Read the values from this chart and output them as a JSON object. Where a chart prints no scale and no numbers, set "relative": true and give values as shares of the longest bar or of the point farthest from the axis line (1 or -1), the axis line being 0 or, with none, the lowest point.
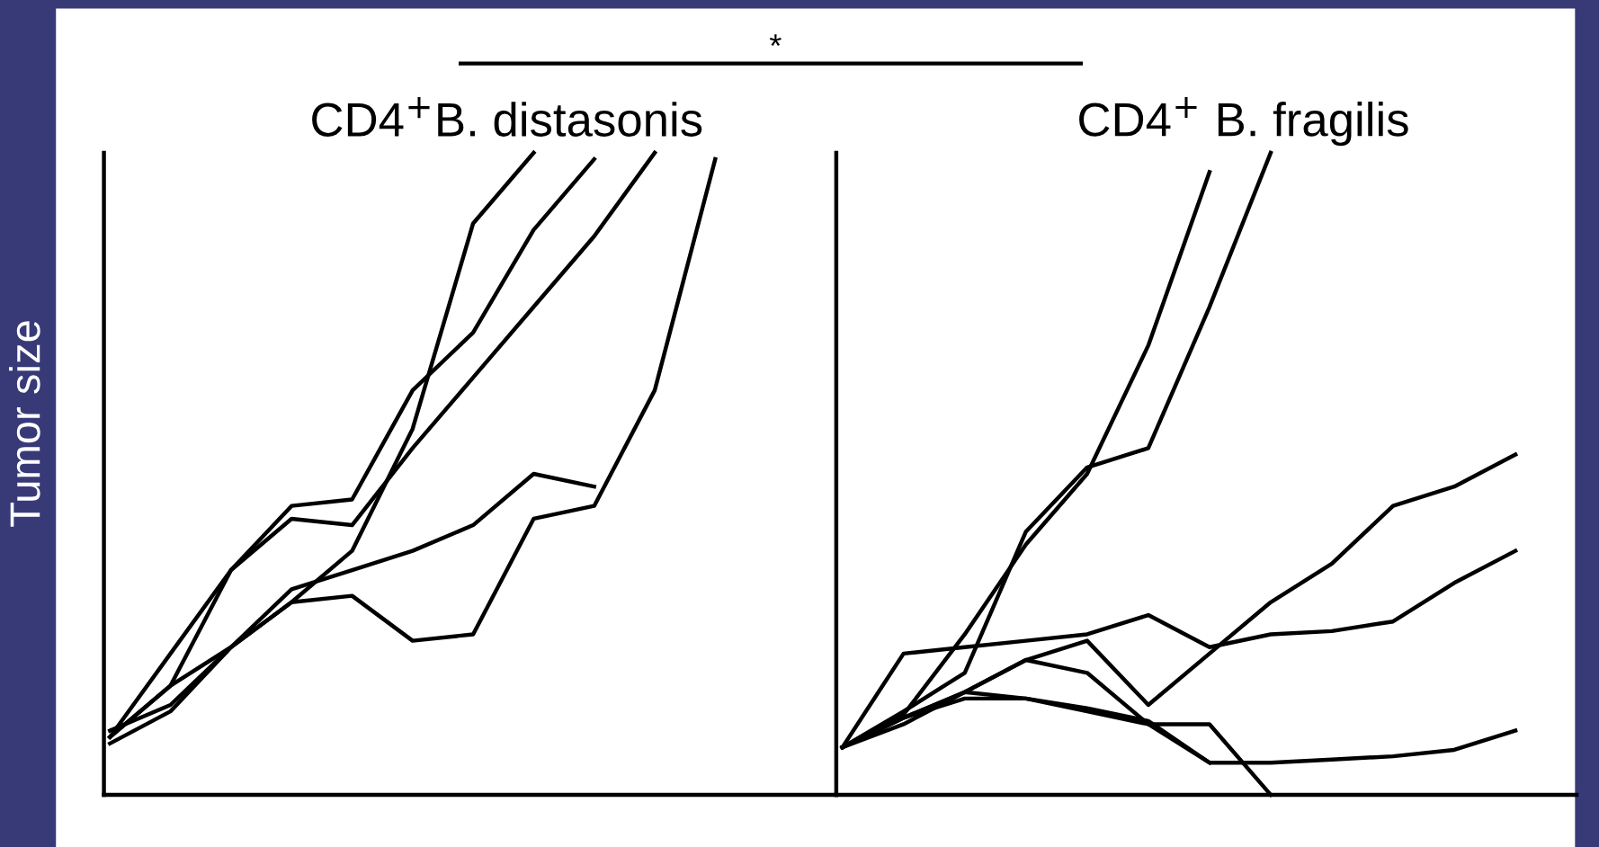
{
  "chart_data": [
    {
      "type": "line",
      "relative": true,
      "title": "CD4$^{+}$B. distasonis",
      "ylabel": "Tumor size",
      "annotations": [
        "*"
      ],
      "legend": false,
      "grid": false,
      "marker": "none",
      "line_style": "solid",
      "categories": [
        null,
        null,
        null,
        null,
        null,
        null,
        null,
        null,
        null,
        null,
        null,
        null,
        null
      ],
      "series": [
        {
          "color": "#000000",
          "values": [
            0.08,
            0.13,
            0.23,
            0.3,
            0.31,
            0.24,
            0.25,
            0.43,
            0.45,
            0.63,
            0.99,
            null,
            null
          ]
        },
        {
          "color": "#000000",
          "values": [
            0.09,
            0.17,
            0.23,
            0.32,
            0.35,
            0.38,
            0.42,
            0.5,
            0.48,
            null,
            null,
            null,
            null
          ]
        },
        {
          "color": "#000000",
          "values": [
            0.1,
            0.14,
            0.23,
            0.3,
            0.38,
            0.57,
            0.89,
            1.0,
            null,
            null,
            null,
            null,
            null
          ]
        },
        {
          "color": "#000000",
          "values": [
            0.09,
            0.22,
            0.35,
            0.45,
            0.46,
            0.63,
            0.72,
            0.88,
            0.99,
            null,
            null,
            null,
            null
          ]
        },
        {
          "color": "#000000",
          "values": [
            0.09,
            0.17,
            0.35,
            0.43,
            0.42,
            0.54,
            0.65,
            0.76,
            0.87,
            1.0,
            null,
            null,
            null
          ]
        }
      ]
    },
    {
      "type": "line",
      "relative": true,
      "title": "CD4$^{+}$ B. fragilis",
      "legend": false,
      "grid": false,
      "marker": "none",
      "line_style": "solid",
      "categories": [
        null,
        null,
        null,
        null,
        null,
        null,
        null,
        null,
        null,
        null,
        null,
        null,
        null
      ],
      "series": [
        {
          "color": "#000000",
          "values": [
            0.074,
            0.125,
            0.25,
            0.39,
            0.5,
            0.7,
            0.97,
            null,
            null,
            null,
            null,
            null,
            null
          ]
        },
        {
          "color": "#000000",
          "values": [
            0.074,
            0.13,
            0.19,
            0.41,
            0.51,
            0.54,
            0.76,
            1.0,
            null,
            null,
            null,
            null,
            null
          ]
        },
        {
          "color": "#000000",
          "values": [
            0.074,
            0.12,
            0.16,
            0.21,
            0.24,
            0.14,
            0.22,
            0.3,
            0.36,
            0.45,
            0.48,
            0.53,
            null
          ]
        },
        {
          "color": "#000000",
          "values": [
            0.074,
            0.22,
            0.23,
            0.24,
            0.25,
            0.28,
            0.23,
            0.25,
            0.255,
            0.27,
            0.33,
            0.38,
            null
          ]
        },
        {
          "color": "#000000",
          "values": [
            0.074,
            0.12,
            0.16,
            0.15,
            0.135,
            0.115,
            0.05,
            0.05,
            0.055,
            0.06,
            0.07,
            0.1,
            null
          ]
        },
        {
          "color": "#000000",
          "values": [
            0.074,
            0.12,
            0.15,
            0.15,
            0.13,
            0.11,
            0.11,
            0.0,
            null,
            null,
            null,
            null,
            null
          ]
        },
        {
          "color": "#000000",
          "values": [
            0.074,
            0.11,
            0.16,
            0.21,
            0.19,
            0.11,
            0.05,
            null,
            null,
            null,
            null,
            null,
            null
          ]
        }
      ]
    }
  ]
}
